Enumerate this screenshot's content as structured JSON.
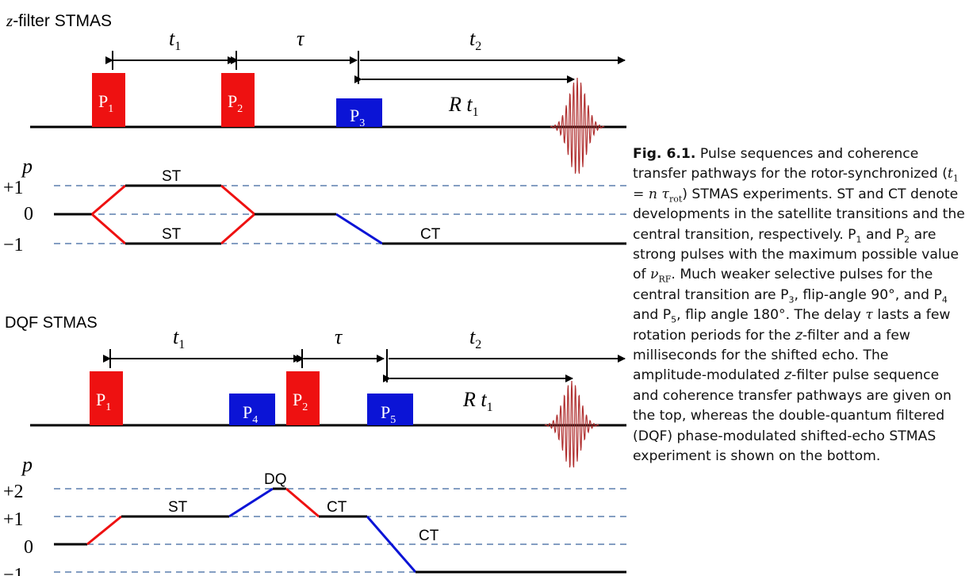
{
  "top": {
    "title_italic": "z",
    "title_rest": "-filter STMAS",
    "t1": "t",
    "t1_sub": "1",
    "tau": "τ",
    "t2": "t",
    "t2_sub": "2",
    "rt1": "R t",
    "rt1_sub": "1",
    "pulses": [
      {
        "label": "P",
        "sub": "1"
      },
      {
        "label": "P",
        "sub": "2"
      },
      {
        "label": "P",
        "sub": "3"
      }
    ],
    "p_label": "p",
    "levels": [
      "+1",
      "0",
      "−1"
    ],
    "path_labels": [
      "ST",
      "ST",
      "CT"
    ]
  },
  "bottom": {
    "title": "DQF STMAS",
    "t1": "t",
    "t1_sub": "1",
    "tau": "τ",
    "t2": "t",
    "t2_sub": "2",
    "rt1": "R t",
    "rt1_sub": "1",
    "pulses": [
      {
        "label": "P",
        "sub": "1"
      },
      {
        "label": "P",
        "sub": "4"
      },
      {
        "label": "P",
        "sub": "2"
      },
      {
        "label": "P",
        "sub": "5"
      }
    ],
    "p_label": "p",
    "levels": [
      "+2",
      "+1",
      "0",
      "−1"
    ],
    "path_labels": [
      "DQ",
      "ST",
      "CT",
      "CT"
    ]
  },
  "caption": {
    "fig_label": "Fig. 6.1.",
    "s1": " Pulse sequences and coherence transfer pathways for the rotor-synchronized (",
    "eq_t": "t",
    "eq_t_sub": "1",
    "eq_eq": " = ",
    "eq_n": "n",
    "eq_tau": " τ",
    "eq_tau_sub": "rot",
    "s2": ") STMAS experiments. ST and CT denote developments in the satellite transitions and the central transition, respectively. P",
    "p1_sub": "1",
    "s3": " and P",
    "p2_sub": "2",
    "s4": " are strong pulses with the maximum possible value of ",
    "nu": "ν",
    "nu_sub": "RF",
    "s5": ". Much weaker selective pulses for the central transition are P",
    "p3_sub": "3",
    "s6": ", flip-angle 90°, and P",
    "p4_sub": "4",
    "s7": " and P",
    "p5_sub": "5",
    "s8": ", flip angle 180°. The delay ",
    "tau": "τ",
    "s9": " lasts a few rotation periods for the ",
    "z1": "z",
    "s10": "-filter and a few milliseconds for the shifted echo. The amplitude-modulated ",
    "z2": "z",
    "s11": "-filter pulse sequence and coherence transfer pathways are given on the top, whereas the double-quantum filtered (DQF) phase-modulated shifted-echo STMAS experiment is shown on the bottom."
  },
  "colors": {
    "strong_pulse": "#ee1111",
    "selective_pulse": "#0b14d6",
    "dashed_level": "#5b7fae",
    "echo": "#b03030"
  }
}
